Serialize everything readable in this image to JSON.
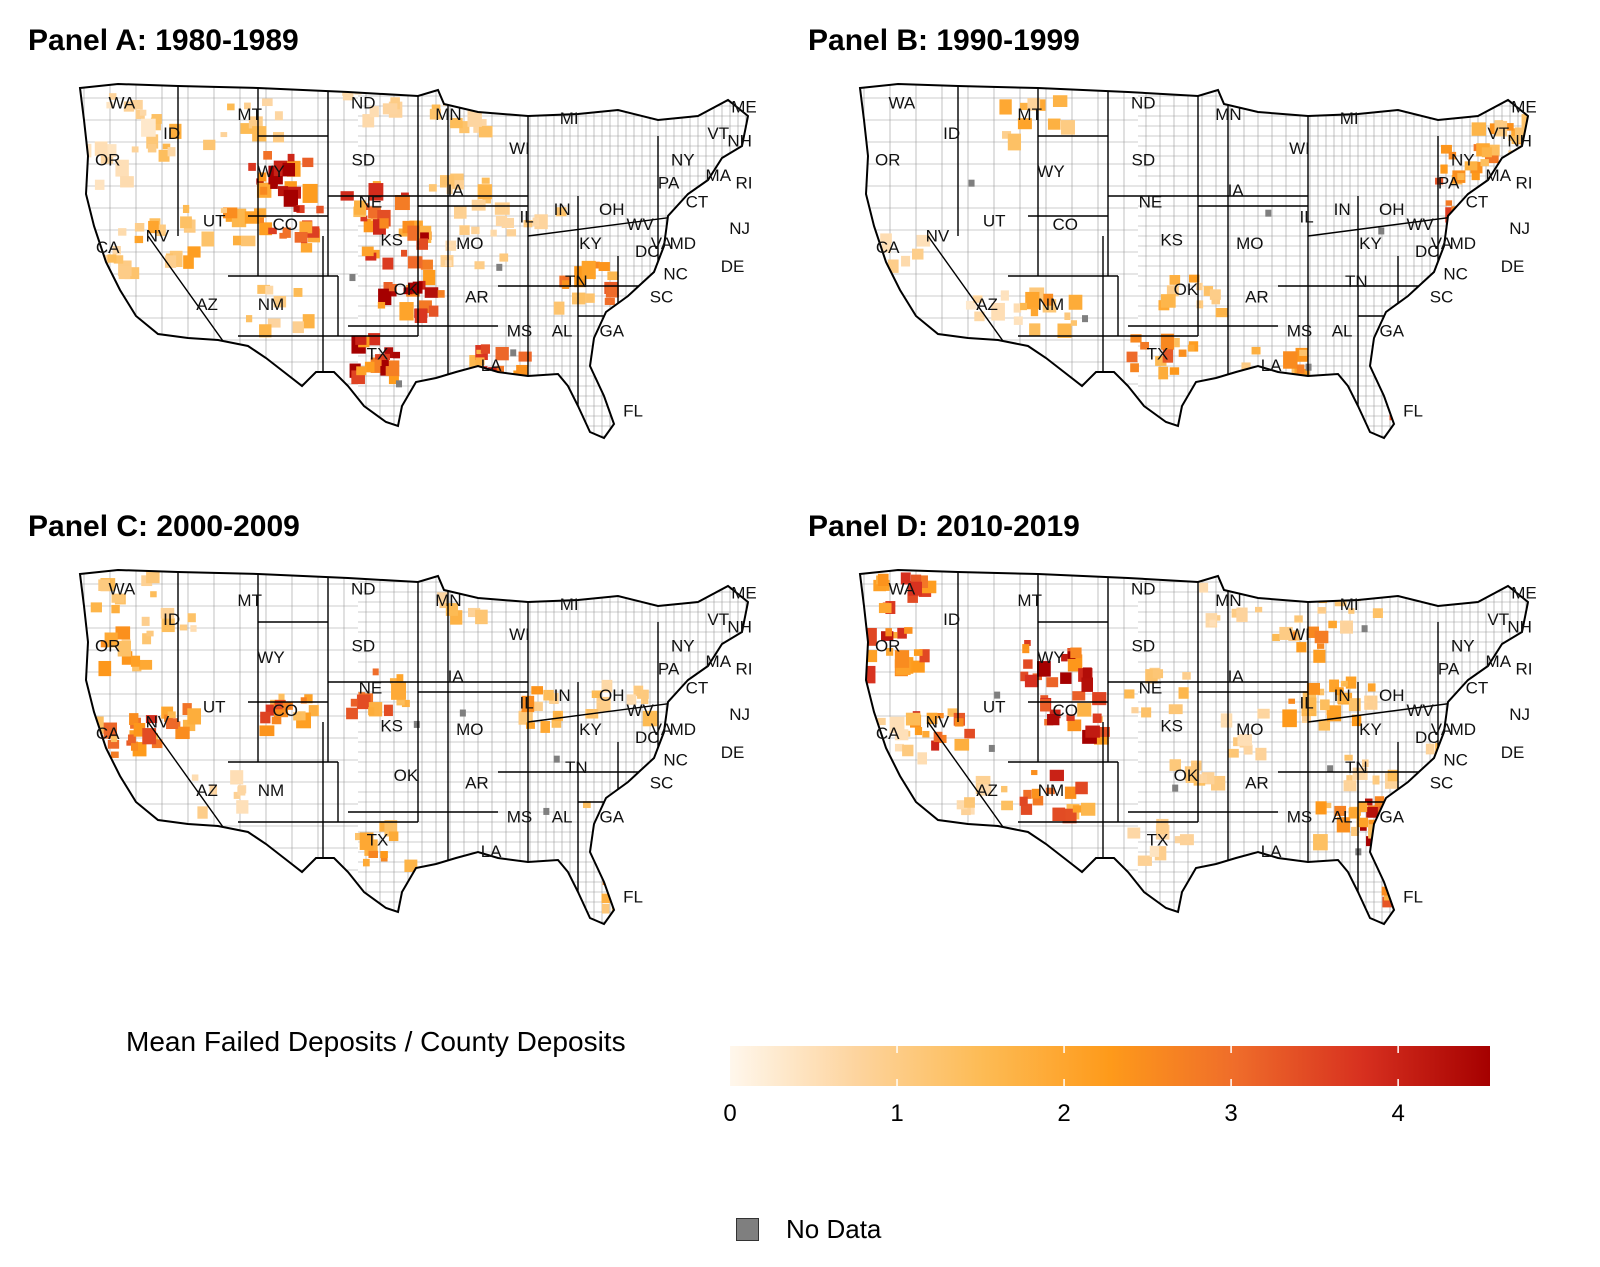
{
  "panels": [
    {
      "title": "Panel A: 1980-1989",
      "hotspots": [
        [
          "MT",
          1.6
        ],
        [
          "WY",
          4.5
        ],
        [
          "CO",
          4.0
        ],
        [
          "KS",
          4.2
        ],
        [
          "OK",
          4.4
        ],
        [
          "TX",
          4.6
        ],
        [
          "NE",
          3.5
        ],
        [
          "LA",
          3.8
        ],
        [
          "IA",
          1.8
        ],
        [
          "MN",
          1.5
        ],
        [
          "ND",
          1.2
        ],
        [
          "ID",
          1.6
        ],
        [
          "UT",
          2.2
        ],
        [
          "NV",
          2.0
        ],
        [
          "CA",
          1.3
        ],
        [
          "NM",
          1.5
        ],
        [
          "TN",
          3.0
        ],
        [
          "IL",
          1.2
        ],
        [
          "WA",
          0.8
        ],
        [
          "OR",
          1.0
        ],
        [
          "MO",
          1.2
        ]
      ]
    },
    {
      "title": "Panel B: 1990-1999",
      "hotspots": [
        [
          "MA",
          3.2
        ],
        [
          "NH",
          2.4
        ],
        [
          "ME",
          1.2
        ],
        [
          "RI",
          3.8
        ],
        [
          "CT",
          3.6
        ],
        [
          "NY",
          3.0
        ],
        [
          "VT",
          1.5
        ],
        [
          "NJ",
          2.8
        ],
        [
          "TX",
          3.0
        ],
        [
          "LA",
          2.4
        ],
        [
          "FL",
          3.4
        ],
        [
          "OK",
          2.0
        ],
        [
          "MT",
          1.8
        ],
        [
          "CA",
          0.9
        ],
        [
          "AZ",
          0.7
        ],
        [
          "NM",
          2.4
        ]
      ]
    },
    {
      "title": "Panel C: 2000-2009",
      "hotspots": [
        [
          "CA",
          2.9
        ],
        [
          "NV",
          3.4
        ],
        [
          "OR",
          2.2
        ],
        [
          "WA",
          1.6
        ],
        [
          "ID",
          1.3
        ],
        [
          "AZ",
          1.0
        ],
        [
          "TX",
          2.6
        ],
        [
          "GA",
          2.8
        ],
        [
          "FL",
          2.4
        ],
        [
          "IL",
          2.2
        ],
        [
          "NE",
          3.2
        ],
        [
          "OH",
          1.4
        ],
        [
          "SC",
          1.2
        ],
        [
          "NC",
          1.4
        ],
        [
          "CO",
          3.4
        ],
        [
          "MN",
          1.6
        ]
      ]
    },
    {
      "title": "Panel D: 2010-2019",
      "hotspots": [
        [
          "WA",
          3.4
        ],
        [
          "OR",
          4.0
        ],
        [
          "NV",
          3.6
        ],
        [
          "CO",
          4.2
        ],
        [
          "NM",
          3.6
        ],
        [
          "GA",
          4.4
        ],
        [
          "FL",
          3.6
        ],
        [
          "AL",
          2.4
        ],
        [
          "SC",
          1.8
        ],
        [
          "IL",
          2.2
        ],
        [
          "IN",
          2.0
        ],
        [
          "MI",
          1.6
        ],
        [
          "MN",
          1.2
        ],
        [
          "NE",
          1.6
        ],
        [
          "AZ",
          1.2
        ],
        [
          "CA",
          1.2
        ],
        [
          "WY",
          4.4
        ],
        [
          "WI",
          2.4
        ],
        [
          "MO",
          1.2
        ],
        [
          "TN",
          1.3
        ],
        [
          "OK",
          1.2
        ],
        [
          "TX",
          1.0
        ],
        [
          "NC",
          1.4
        ]
      ]
    }
  ],
  "state_labels": [
    "WA",
    "OR",
    "CA",
    "ID",
    "NV",
    "MT",
    "WY",
    "UT",
    "AZ",
    "CO",
    "NM",
    "ND",
    "SD",
    "NE",
    "KS",
    "OK",
    "TX",
    "MN",
    "IA",
    "MO",
    "AR",
    "LA",
    "WI",
    "IL",
    "MI",
    "IN",
    "OH",
    "KY",
    "TN",
    "MS",
    "AL",
    "GA",
    "FL",
    "SC",
    "NC",
    "VA",
    "WV",
    "PA",
    "NY",
    "VT",
    "NH",
    "ME",
    "MA",
    "RI",
    "CT",
    "NJ",
    "DE",
    "MD",
    "DC"
  ],
  "legend": {
    "title": "Mean Failed Deposits / County Deposits",
    "ticks": [
      "0",
      "1",
      "2",
      "3",
      "4"
    ],
    "tick_values": [
      0,
      1,
      2,
      3,
      4
    ],
    "range": [
      0,
      4.55
    ],
    "gradient_colors": [
      "#fff7ec",
      "#fdd49e",
      "#fdbb54",
      "#fe9a1a",
      "#ef6c2a",
      "#d7301f",
      "#a50000"
    ],
    "no_data_label": "No Data",
    "no_data_color": "#7f7f7f"
  }
}
